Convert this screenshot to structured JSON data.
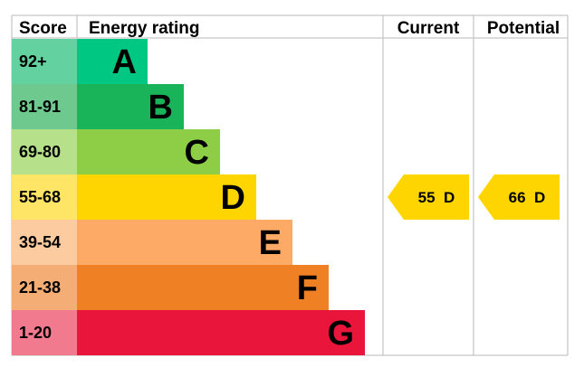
{
  "chart_data": {
    "type": "table",
    "headers": {
      "score": "Score",
      "rating": "Energy rating",
      "current": "Current",
      "potential": "Potential"
    },
    "bands": [
      {
        "score": "92+",
        "letter": "A",
        "color": "#00c781",
        "score_bg": "#63d1a0"
      },
      {
        "score": "81-91",
        "letter": "B",
        "color": "#19b459",
        "score_bg": "#6ec98e"
      },
      {
        "score": "69-80",
        "letter": "C",
        "color": "#8dce46",
        "score_bg": "#b7e08a"
      },
      {
        "score": "55-68",
        "letter": "D",
        "color": "#ffd500",
        "score_bg": "#ffe566"
      },
      {
        "score": "39-54",
        "letter": "E",
        "color": "#fcaa65",
        "score_bg": "#fdcba0"
      },
      {
        "score": "21-38",
        "letter": "F",
        "color": "#ef8023",
        "score_bg": "#f5ad76"
      },
      {
        "score": "1-20",
        "letter": "G",
        "color": "#e9153b",
        "score_bg": "#f27a8e"
      }
    ],
    "current": {
      "value": 55,
      "letter": "D",
      "label": "55  D",
      "color": "#ffd500"
    },
    "potential": {
      "value": 66,
      "letter": "D",
      "label": "66  D",
      "color": "#ffd500"
    }
  }
}
